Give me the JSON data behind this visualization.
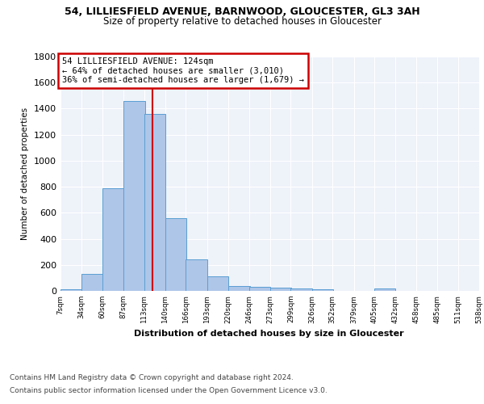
{
  "title1": "54, LILLIESFIELD AVENUE, BARNWOOD, GLOUCESTER, GL3 3AH",
  "title2": "Size of property relative to detached houses in Gloucester",
  "xlabel": "Distribution of detached houses by size in Gloucester",
  "ylabel": "Number of detached properties",
  "bins": [
    7,
    34,
    60,
    87,
    113,
    140,
    166,
    193,
    220,
    246,
    273,
    299,
    326,
    352,
    379,
    405,
    432,
    458,
    485,
    511,
    538
  ],
  "counts": [
    15,
    130,
    790,
    1460,
    1360,
    560,
    245,
    110,
    38,
    28,
    22,
    18,
    12,
    0,
    0,
    20,
    0,
    0,
    0,
    0
  ],
  "bar_color": "#aec6e8",
  "bar_edge_color": "#5a9fd4",
  "property_size": 124,
  "smaller_pct": 64,
  "smaller_count": "3,010",
  "larger_pct": 36,
  "larger_count": "1,679",
  "vline_color": "#cc0000",
  "annotation_box_edge_color": "#cc0000",
  "background_color": "#eef2f9",
  "grid_color": "#ffffff",
  "footer1": "Contains HM Land Registry data © Crown copyright and database right 2024.",
  "footer2": "Contains public sector information licensed under the Open Government Licence v3.0.",
  "ylim": [
    0,
    1800
  ],
  "yticks": [
    0,
    200,
    400,
    600,
    800,
    1000,
    1200,
    1400,
    1600,
    1800
  ]
}
